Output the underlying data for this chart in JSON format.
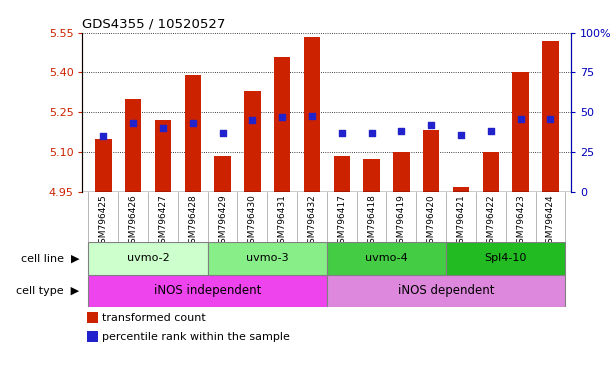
{
  "title": "GDS4355 / 10520527",
  "samples": [
    "GSM796425",
    "GSM796426",
    "GSM796427",
    "GSM796428",
    "GSM796429",
    "GSM796430",
    "GSM796431",
    "GSM796432",
    "GSM796417",
    "GSM796418",
    "GSM796419",
    "GSM796420",
    "GSM796421",
    "GSM796422",
    "GSM796423",
    "GSM796424"
  ],
  "transformed_counts": [
    5.15,
    5.3,
    5.22,
    5.39,
    5.085,
    5.33,
    5.46,
    5.535,
    5.085,
    5.075,
    5.1,
    5.185,
    4.97,
    5.1,
    5.4,
    5.52
  ],
  "percentile_ranks": [
    35,
    43,
    40,
    43,
    37,
    45,
    47,
    48,
    37,
    37,
    38,
    42,
    36,
    38,
    46,
    46
  ],
  "ylim_left": [
    4.95,
    5.55
  ],
  "yticks_left": [
    4.95,
    5.1,
    5.25,
    5.4,
    5.55
  ],
  "yticks_right": [
    0,
    25,
    50,
    75,
    100
  ],
  "bar_color": "#cc2200",
  "dot_color": "#2222cc",
  "cell_line_colors": [
    "#ccffcc",
    "#88ee88",
    "#44cc44",
    "#22bb22"
  ],
  "cell_lines": [
    {
      "label": "uvmo-2",
      "start": 0,
      "end": 3
    },
    {
      "label": "uvmo-3",
      "start": 4,
      "end": 7
    },
    {
      "label": "uvmo-4",
      "start": 8,
      "end": 11
    },
    {
      "label": "Spl4-10",
      "start": 12,
      "end": 15
    }
  ],
  "cell_type_colors": [
    "#ee44ee",
    "#dd88dd"
  ],
  "cell_types": [
    {
      "label": "iNOS independent",
      "start": 0,
      "end": 7
    },
    {
      "label": "iNOS dependent",
      "start": 8,
      "end": 15
    }
  ],
  "legend_items": [
    {
      "color": "#cc2200",
      "label": "transformed count"
    },
    {
      "color": "#2222cc",
      "label": "percentile rank within the sample"
    }
  ],
  "left_axis_color": "#cc2200",
  "right_axis_color": "#0000bb",
  "xtick_bg": "#d0d0d0"
}
